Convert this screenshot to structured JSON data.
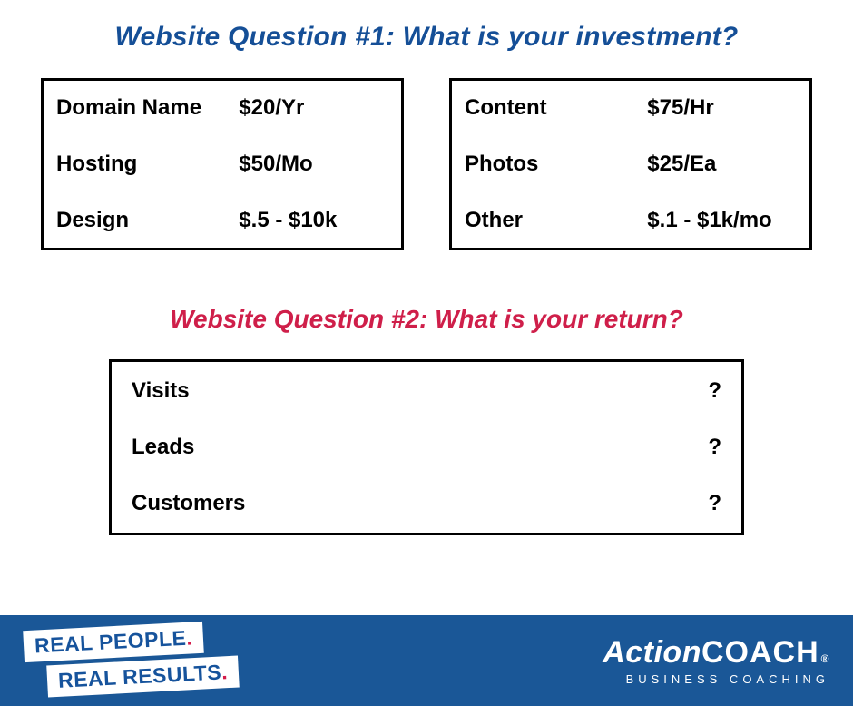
{
  "colors": {
    "heading_blue": "#154f97",
    "heading_red": "#cf1f4a",
    "footer_bg": "#1a5797",
    "text": "#000000",
    "white": "#ffffff"
  },
  "heading1": "Website Question #1: What is your investment?",
  "heading2": "Website Question #2: What is your return?",
  "investment_left": [
    {
      "label": "Domain Name",
      "value": "$20/Yr"
    },
    {
      "label": "Hosting",
      "value": "$50/Mo"
    },
    {
      "label": "Design",
      "value": "$.5 - $10k"
    }
  ],
  "investment_right": [
    {
      "label": "Content",
      "value": "$75/Hr"
    },
    {
      "label": "Photos",
      "value": "$25/Ea"
    },
    {
      "label": "Other",
      "value": "$.1 - $1k/mo"
    }
  ],
  "return_rows": [
    {
      "label": "Visits",
      "value": "?"
    },
    {
      "label": "Leads",
      "value": "?"
    },
    {
      "label": "Customers",
      "value": "?"
    }
  ],
  "footer": {
    "tagline_top": "REAL PEOPLE",
    "tagline_bot": "REAL RESULTS",
    "dot": ".",
    "brand_action": "Action",
    "brand_coach": "COACH",
    "brand_reg": "®",
    "brand_sub": "BUSINESS COACHING"
  }
}
